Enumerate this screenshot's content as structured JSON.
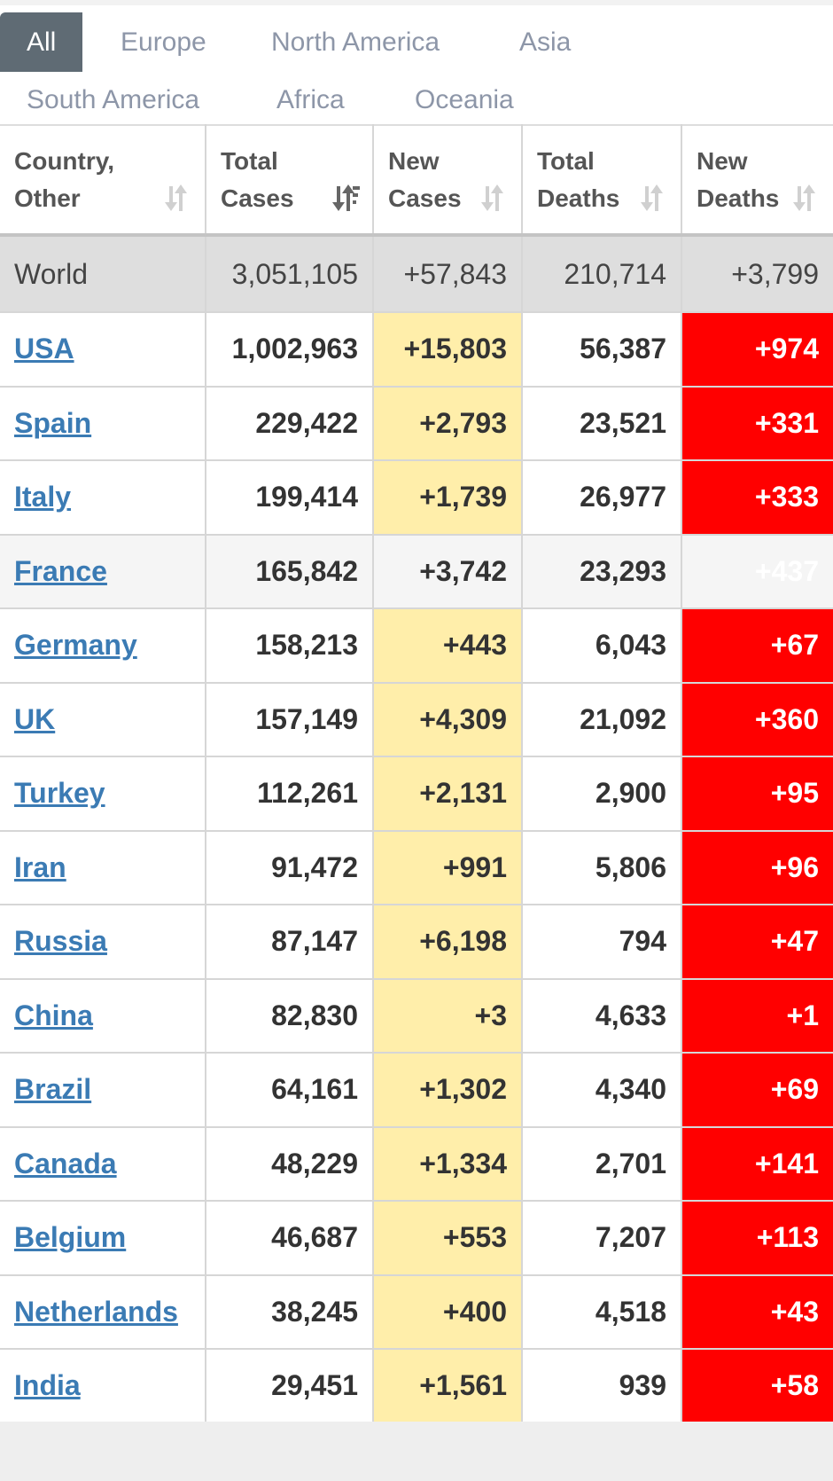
{
  "tabs": [
    "All",
    "Europe",
    "North America",
    "Asia",
    "South America",
    "Africa",
    "Oceania"
  ],
  "table": {
    "columns": [
      "Country, Other",
      "Total Cases",
      "New Cases",
      "Total Deaths",
      "New Deaths"
    ],
    "world": [
      "World",
      "3,051,105",
      "+57,843",
      "210,714",
      "+3,799"
    ],
    "rows": [
      [
        "USA",
        "1,002,963",
        "+15,803",
        "56,387",
        "+974"
      ],
      [
        "Spain",
        "229,422",
        "+2,793",
        "23,521",
        "+331"
      ],
      [
        "Italy",
        "199,414",
        "+1,739",
        "26,977",
        "+333"
      ],
      [
        "France",
        "165,842",
        "+3,742",
        "23,293",
        "+437"
      ],
      [
        "Germany",
        "158,213",
        "+443",
        "6,043",
        "+67"
      ],
      [
        "UK",
        "157,149",
        "+4,309",
        "21,092",
        "+360"
      ],
      [
        "Turkey",
        "112,261",
        "+2,131",
        "2,900",
        "+95"
      ],
      [
        "Iran",
        "91,472",
        "+991",
        "5,806",
        "+96"
      ],
      [
        "Russia",
        "87,147",
        "+6,198",
        "794",
        "+47"
      ],
      [
        "China",
        "82,830",
        "+3",
        "4,633",
        "+1"
      ],
      [
        "Brazil",
        "64,161",
        "+1,302",
        "4,340",
        "+69"
      ],
      [
        "Canada",
        "48,229",
        "+1,334",
        "2,701",
        "+141"
      ],
      [
        "Belgium",
        "46,687",
        "+553",
        "7,207",
        "+113"
      ],
      [
        "Netherlands",
        "38,245",
        "+400",
        "4,518",
        "+43"
      ],
      [
        "India",
        "29,451",
        "+1,561",
        "939",
        "+58"
      ]
    ]
  }
}
